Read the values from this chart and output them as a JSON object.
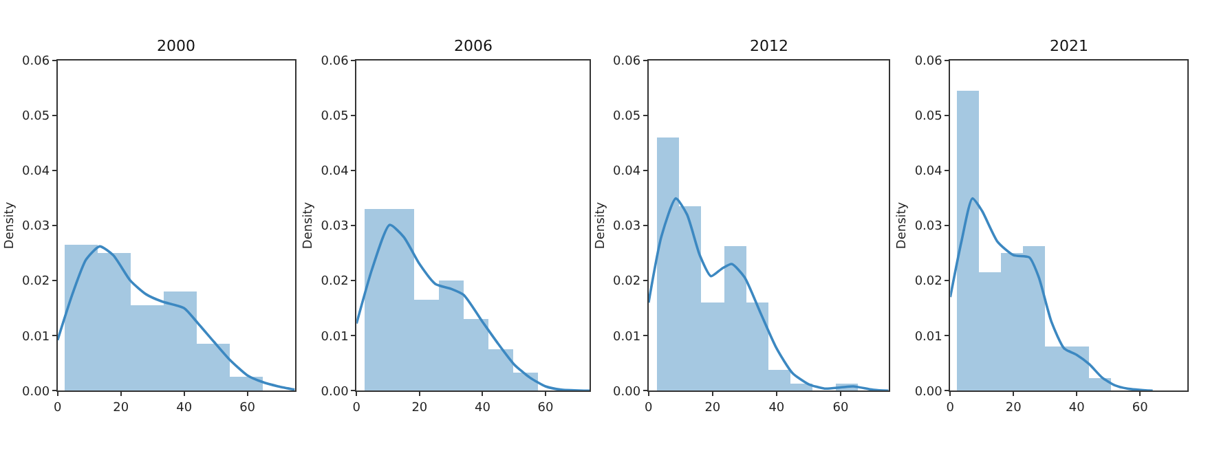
{
  "chart_data": [
    {
      "type": "histogram",
      "title": "2000",
      "ylabel": "Density",
      "xlim": [
        0,
        75
      ],
      "xticks": [
        0,
        20,
        40,
        60
      ],
      "ylim": [
        0,
        0.06
      ],
      "yticks": [
        {
          "value": 0,
          "label": "0.00"
        },
        {
          "value": 0.01,
          "label": "0.01"
        },
        {
          "value": 0.02,
          "label": "0.02"
        },
        {
          "value": 0.03,
          "label": "0.03"
        },
        {
          "value": 0.04,
          "label": "0.04"
        },
        {
          "value": 0.05,
          "label": "0.05"
        },
        {
          "value": 0.06,
          "label": "0.06"
        }
      ],
      "series": [
        {
          "color": "#a5c8e1",
          "bins": [
            2.2,
            12.6,
            23.0,
            33.4,
            43.8,
            54.2,
            64.6
          ],
          "values": [
            0.0266,
            0.025,
            0.0157,
            0.0182,
            0.0087,
            0.0027
          ]
        },
        {
          "type": "line",
          "color": "#3c88c1",
          "x": [
            0,
            4.6,
            9,
            13.3,
            17.6,
            23,
            28,
            33,
            40,
            44,
            49.4,
            54.3,
            60,
            64.7,
            69.7,
            75
          ],
          "values": [
            0.0092,
            0.0174,
            0.0238,
            0.0262,
            0.0246,
            0.02,
            0.0175,
            0.0162,
            0.015,
            0.0125,
            0.0089,
            0.0057,
            0.0028,
            0.0016,
            0.0008,
            0.0002
          ]
        }
      ]
    },
    {
      "type": "histogram",
      "title": "2006",
      "ylabel": "Density",
      "xlim": [
        0,
        74
      ],
      "xticks": [
        0,
        20,
        40,
        60
      ],
      "ylim": [
        0,
        0.06
      ],
      "yticks": [
        {
          "value": 0,
          "label": "0.00"
        },
        {
          "value": 0.01,
          "label": "0.01"
        },
        {
          "value": 0.02,
          "label": "0.02"
        },
        {
          "value": 0.03,
          "label": "0.03"
        },
        {
          "value": 0.04,
          "label": "0.04"
        },
        {
          "value": 0.05,
          "label": "0.05"
        },
        {
          "value": 0.06,
          "label": "0.06"
        }
      ],
      "series": [
        {
          "color": "#a5c8e1",
          "bins": [
            2.5,
            10.4,
            18.2,
            26.1,
            34.0,
            41.9,
            49.8,
            57.7
          ],
          "values": [
            0.033,
            0.033,
            0.0166,
            0.02,
            0.0132,
            0.0077,
            0.0034
          ]
        },
        {
          "type": "line",
          "color": "#3c88c1",
          "x": [
            0,
            5,
            10.5,
            15,
            20,
            25,
            30,
            34,
            40,
            45,
            50,
            55,
            60,
            65,
            74
          ],
          "values": [
            0.0122,
            0.0222,
            0.0301,
            0.0279,
            0.023,
            0.0194,
            0.0185,
            0.0174,
            0.0125,
            0.0085,
            0.0048,
            0.0024,
            0.0008,
            0.0002,
            0
          ]
        }
      ]
    },
    {
      "type": "histogram",
      "title": "2012",
      "ylabel": "Density",
      "xlim": [
        0,
        75
      ],
      "xticks": [
        0,
        20,
        40,
        60
      ],
      "ylim": [
        0,
        0.06
      ],
      "yticks": [
        {
          "value": 0,
          "label": "0.00"
        },
        {
          "value": 0.01,
          "label": "0.01"
        },
        {
          "value": 0.02,
          "label": "0.02"
        },
        {
          "value": 0.03,
          "label": "0.03"
        },
        {
          "value": 0.04,
          "label": "0.04"
        },
        {
          "value": 0.05,
          "label": "0.05"
        },
        {
          "value": 0.06,
          "label": "0.06"
        }
      ],
      "series": [
        {
          "color": "#a5c8e1",
          "bins": [
            2.5,
            9.5,
            16.5,
            23.5,
            30.4,
            37.4,
            44.3,
            51.3,
            58.3,
            65.2
          ],
          "values": [
            0.046,
            0.0335,
            0.0162,
            0.0262,
            0.0162,
            0.0038,
            0.0014,
            0,
            0.0014
          ]
        },
        {
          "type": "line",
          "color": "#3c88c1",
          "x": [
            0,
            4,
            8.5,
            12,
            16,
            19.5,
            23,
            26,
            30,
            35,
            40,
            45,
            50,
            55,
            60,
            64,
            70,
            75
          ],
          "values": [
            0.016,
            0.028,
            0.0349,
            0.032,
            0.0246,
            0.0208,
            0.0222,
            0.023,
            0.0206,
            0.0141,
            0.0077,
            0.0032,
            0.0012,
            0.0004,
            0.0006,
            0.0008,
            0.0002,
            0
          ]
        }
      ]
    },
    {
      "type": "histogram",
      "title": "2021",
      "ylabel": "Density",
      "xlim": [
        0,
        75
      ],
      "xticks": [
        0,
        20,
        40,
        60
      ],
      "ylim": [
        0,
        0.06
      ],
      "yticks": [
        {
          "value": 0,
          "label": "0.00"
        },
        {
          "value": 0.01,
          "label": "0.01"
        },
        {
          "value": 0.02,
          "label": "0.02"
        },
        {
          "value": 0.03,
          "label": "0.03"
        },
        {
          "value": 0.04,
          "label": "0.04"
        },
        {
          "value": 0.05,
          "label": "0.05"
        },
        {
          "value": 0.06,
          "label": "0.06"
        }
      ],
      "series": [
        {
          "color": "#a5c8e1",
          "bins": [
            2.0,
            9.1,
            16.1,
            23.0,
            30.0,
            37.0,
            43.9,
            50.9
          ],
          "values": [
            0.0544,
            0.0216,
            0.025,
            0.0262,
            0.0081,
            0.0081,
            0.0024
          ]
        },
        {
          "type": "line",
          "color": "#3c88c1",
          "x": [
            0,
            3.5,
            7,
            10,
            15,
            20,
            25,
            28,
            32,
            36,
            40,
            44,
            48,
            52,
            56,
            64
          ],
          "values": [
            0.017,
            0.027,
            0.0349,
            0.0327,
            0.027,
            0.0246,
            0.0242,
            0.0206,
            0.0125,
            0.0077,
            0.0065,
            0.0048,
            0.0024,
            0.001,
            0.0004,
            0
          ]
        }
      ]
    }
  ]
}
